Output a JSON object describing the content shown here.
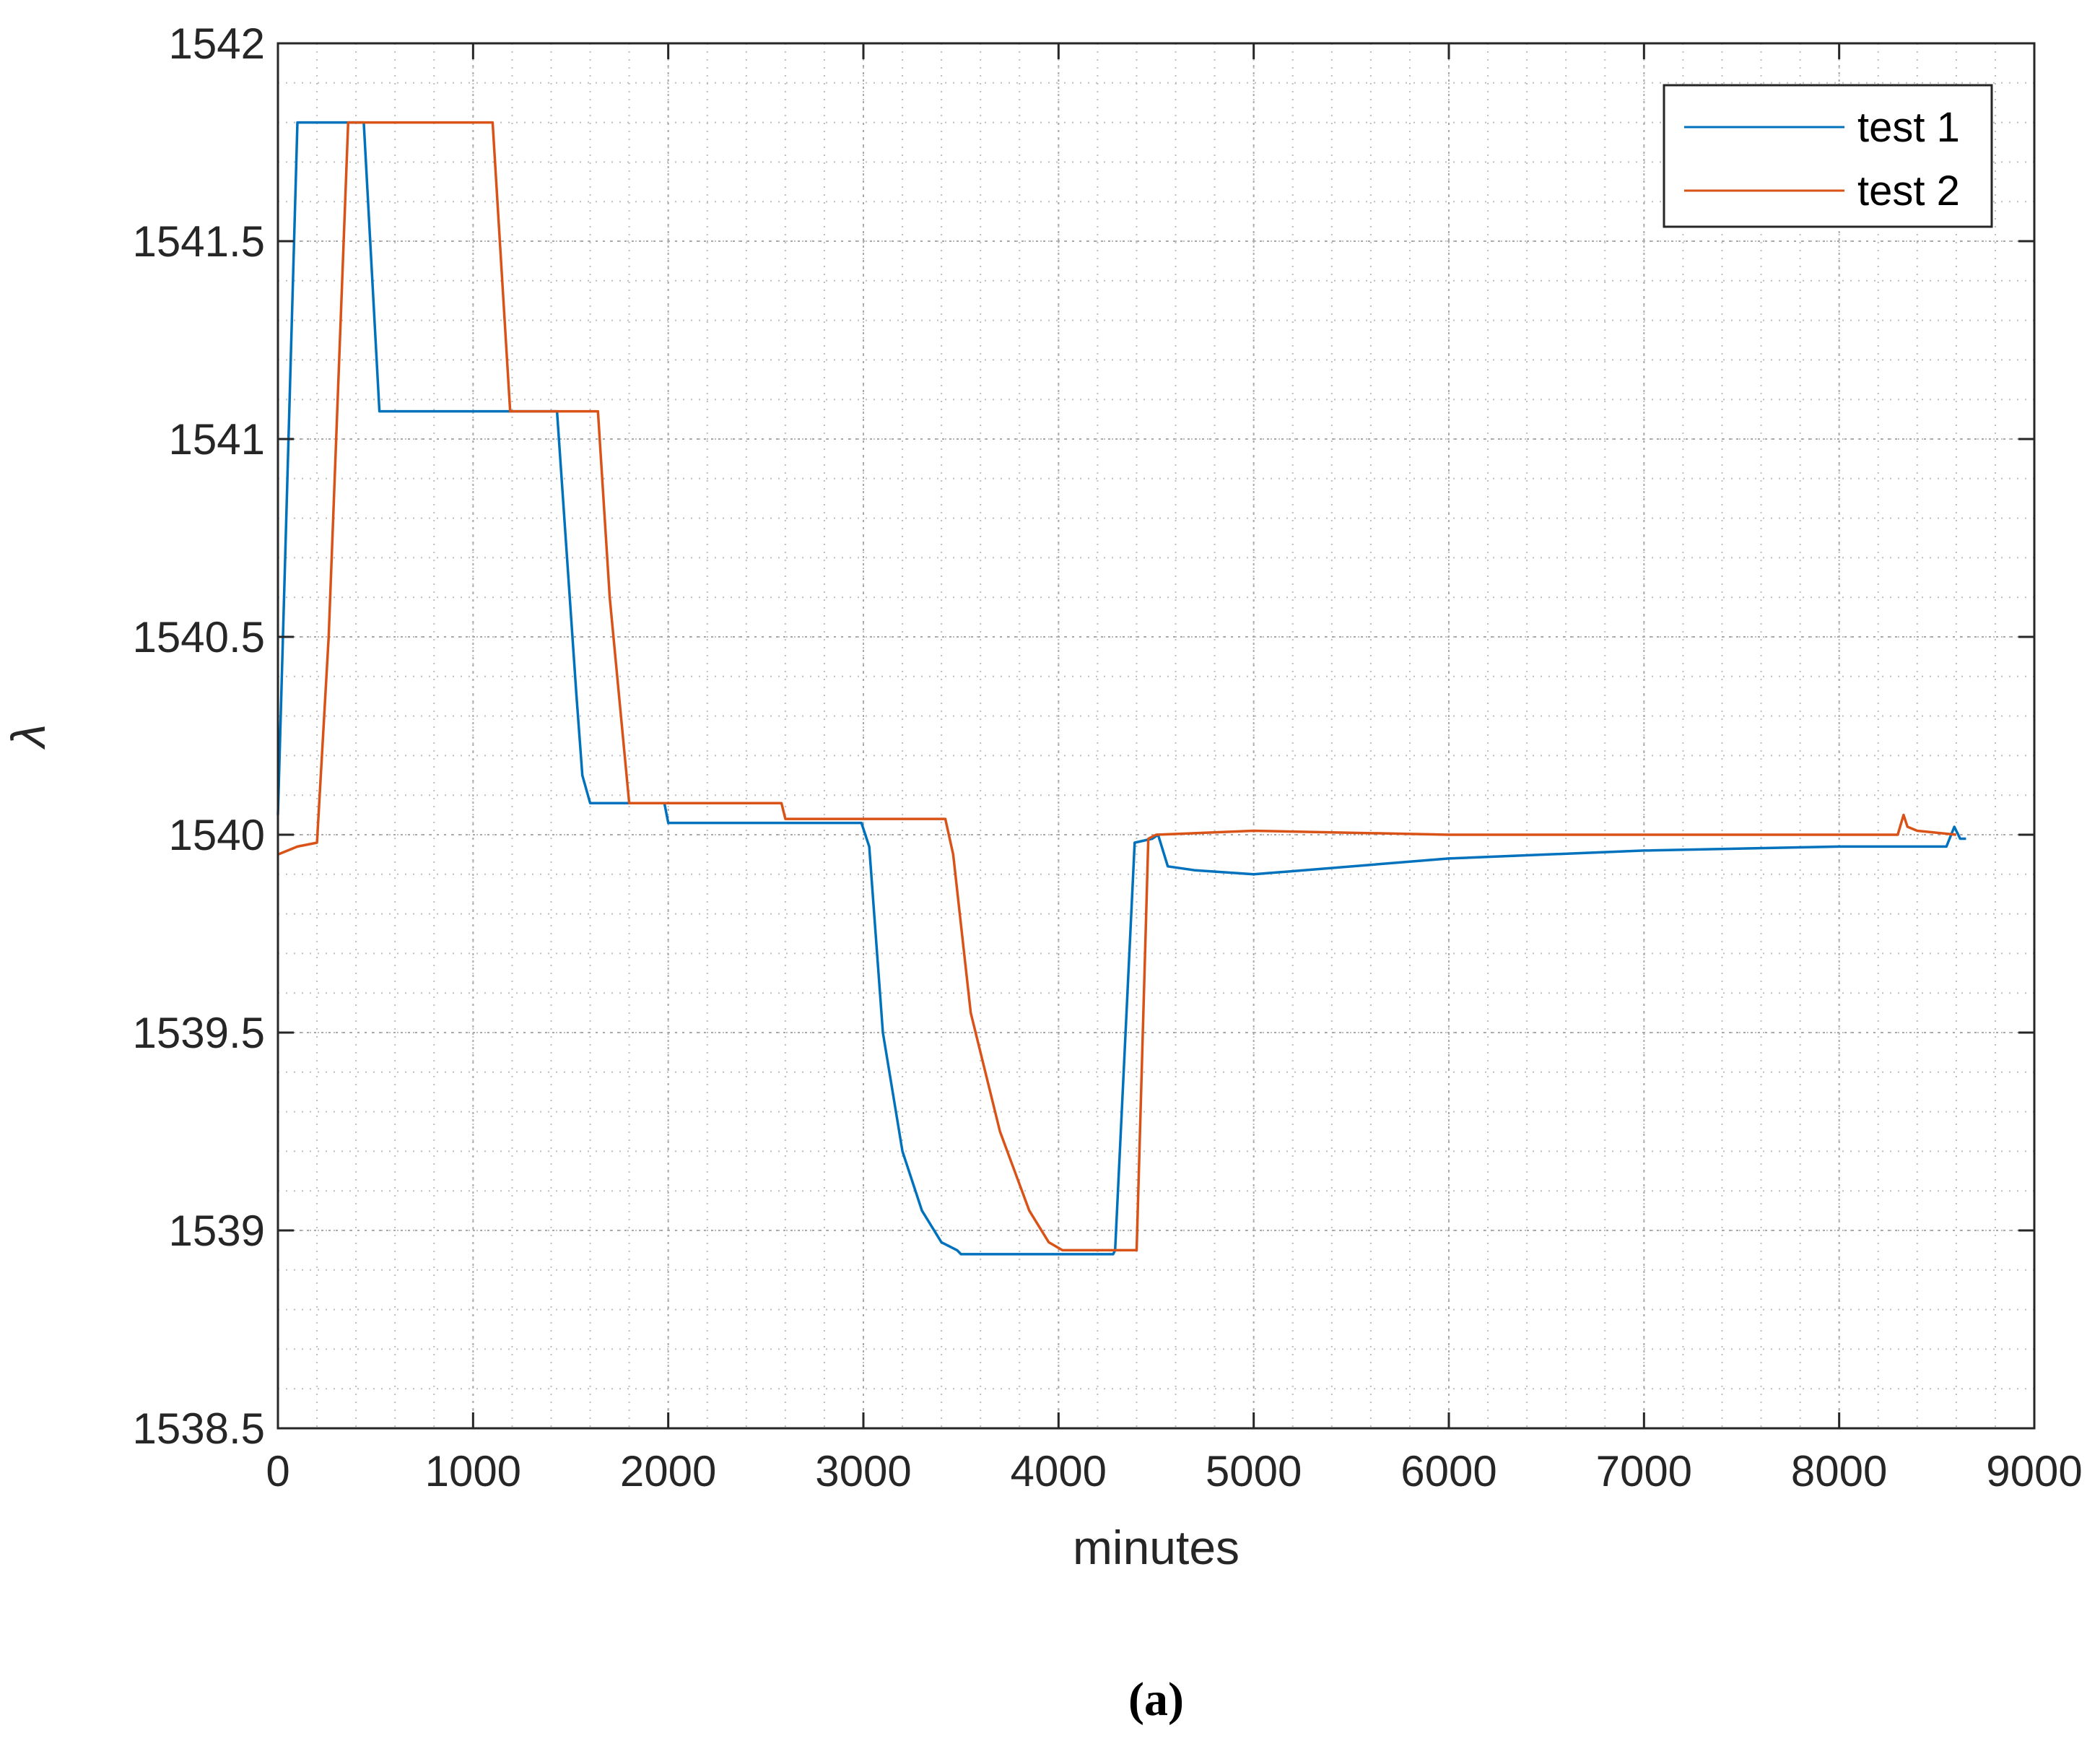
{
  "chart_data": {
    "type": "line",
    "title": "",
    "xlabel": "minutes",
    "ylabel": "λ",
    "xlim": [
      0,
      9000
    ],
    "ylim": [
      1538.5,
      1542
    ],
    "xticks": [
      0,
      1000,
      2000,
      3000,
      4000,
      5000,
      6000,
      7000,
      8000,
      9000
    ],
    "yticks": [
      1538.5,
      1539,
      1539.5,
      1540,
      1540.5,
      1541,
      1541.5,
      1542
    ],
    "xtick_labels": [
      "0",
      "1000",
      "2000",
      "3000",
      "4000",
      "5000",
      "6000",
      "7000",
      "8000",
      "9000"
    ],
    "ytick_labels": [
      "1538.5",
      "1539",
      "1539.5",
      "1540",
      "1540.5",
      "1541",
      "1541.5",
      "1542"
    ],
    "grid": true,
    "minor_grid": true,
    "legend_position": "top-right",
    "series": [
      {
        "name": "test 1",
        "color": "#0072BD",
        "x": [
          0,
          100,
          440,
          520,
          1430,
          1530,
          1560,
          1600,
          1980,
          2000,
          2990,
          3030,
          3100,
          3200,
          3300,
          3400,
          3480,
          3500,
          4280,
          4290,
          4390,
          4480,
          4510,
          4560,
          4700,
          5000,
          6000,
          7000,
          8000,
          8550,
          8590,
          8620,
          8650
        ],
        "y": [
          1540.05,
          1541.8,
          1541.8,
          1541.07,
          1541.07,
          1540.35,
          1540.15,
          1540.08,
          1540.08,
          1540.03,
          1540.03,
          1539.97,
          1539.5,
          1539.2,
          1539.05,
          1538.97,
          1538.95,
          1538.94,
          1538.94,
          1538.95,
          1539.98,
          1539.99,
          1540.0,
          1539.92,
          1539.91,
          1539.9,
          1539.94,
          1539.96,
          1539.97,
          1539.97,
          1540.02,
          1539.99,
          1539.99
        ]
      },
      {
        "name": "test 2",
        "color": "#D95319",
        "x": [
          0,
          100,
          200,
          260,
          360,
          1100,
          1190,
          1640,
          1700,
          1800,
          2580,
          2600,
          3420,
          3460,
          3550,
          3700,
          3850,
          3950,
          4020,
          4400,
          4460,
          4500,
          5000,
          6000,
          7000,
          8000,
          8300,
          8330,
          8350,
          8400,
          8600
        ],
        "y": [
          1539.95,
          1539.97,
          1539.98,
          1540.5,
          1541.8,
          1541.8,
          1541.07,
          1541.07,
          1540.6,
          1540.08,
          1540.08,
          1540.04,
          1540.04,
          1539.95,
          1539.55,
          1539.25,
          1539.05,
          1538.97,
          1538.95,
          1538.95,
          1539.99,
          1540.0,
          1540.01,
          1540.0,
          1540.0,
          1540.0,
          1540.0,
          1540.05,
          1540.02,
          1540.01,
          1540.0
        ]
      }
    ]
  },
  "caption": "(a)"
}
